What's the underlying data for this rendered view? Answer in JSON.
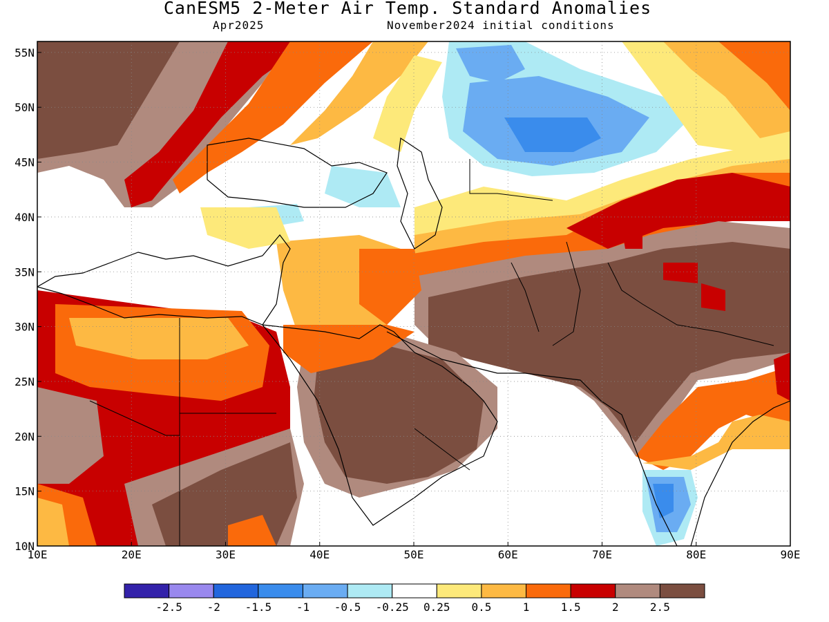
{
  "title": "CanESM5 2-Meter Air Temp. Standard Anomalies",
  "subtitle_left": "Apr2025",
  "subtitle_right": "November2024 initial conditions",
  "map": {
    "lon_range": [
      10,
      90
    ],
    "lat_range": [
      10,
      56
    ],
    "lon_ticks": [
      {
        "value": 10,
        "label": "10E"
      },
      {
        "value": 20,
        "label": "20E"
      },
      {
        "value": 30,
        "label": "30E"
      },
      {
        "value": 40,
        "label": "40E"
      },
      {
        "value": 50,
        "label": "50E"
      },
      {
        "value": 60,
        "label": "60E"
      },
      {
        "value": 70,
        "label": "70E"
      },
      {
        "value": 80,
        "label": "80E"
      },
      {
        "value": 90,
        "label": "90E"
      }
    ],
    "lat_ticks": [
      {
        "value": 10,
        "label": "10N"
      },
      {
        "value": 15,
        "label": "15N"
      },
      {
        "value": 20,
        "label": "20N"
      },
      {
        "value": 25,
        "label": "25N"
      },
      {
        "value": 30,
        "label": "30N"
      },
      {
        "value": 35,
        "label": "35N"
      },
      {
        "value": 40,
        "label": "40N"
      },
      {
        "value": 45,
        "label": "45N"
      },
      {
        "value": 50,
        "label": "50N"
      },
      {
        "value": 55,
        "label": "55N"
      }
    ],
    "grid": true
  },
  "colorbar": {
    "colors": [
      "#3322aa",
      "#9988ee",
      "#2266dd",
      "#3a8cec",
      "#6aacf2",
      "#aeeaf4",
      "#ffffff",
      "#fde97a",
      "#fdb943",
      "#fa6a0b",
      "#c80000",
      "#b08a7e",
      "#7b4e40"
    ],
    "labels": [
      "-2.5",
      "-2",
      "-1.5",
      "-1",
      "-0.5",
      "-0.25",
      "0.25",
      "0.5",
      "1",
      "1.5",
      "2",
      "2.5"
    ]
  }
}
